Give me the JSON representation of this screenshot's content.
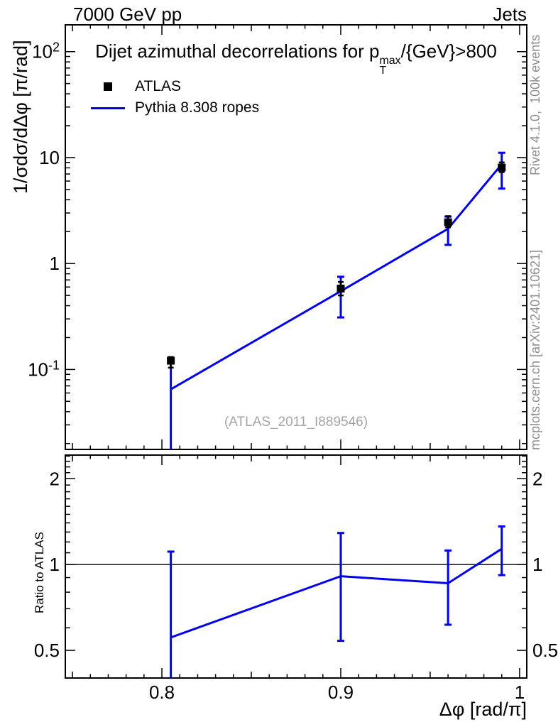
{
  "header": {
    "left": "7000 GeV pp",
    "right": "Jets"
  },
  "title": {
    "pre": "Dijet azimuthal decorrelations for p",
    "sup": "max",
    "sub": "T",
    "post": "/{GeV}>800"
  },
  "legend": {
    "items": [
      {
        "label": "ATLAS",
        "marker": "black-square",
        "color": "#000000"
      },
      {
        "label": "Pythia 8.308 ropes",
        "marker": "blue-line",
        "color": "#0000ee"
      }
    ]
  },
  "axes": {
    "y_label_main": "1/σdσ/dΔφ [π/rad]",
    "y_label_ratio": "Ratio to ATLAS",
    "x_label": "Δφ [rad/π]"
  },
  "side_texts": {
    "rivet": "Rivet 4.1.0,  100k events",
    "mcplots": "mcplots.cern.ch [arXiv:2401.10621]"
  },
  "watermark": "(ATLAS_2011_I889546)",
  "colors": {
    "mc_line": "#0000ee",
    "data_marker": "#000000",
    "frame": "#000000",
    "side_text": "#8f8f8f",
    "watermark": "#a6a6a6"
  },
  "chart_data": {
    "type": "line",
    "title": "Dijet azimuthal decorrelations for pT^max/{GeV}>800",
    "x_axis": {
      "label": "Δφ [rad/π]",
      "range": [
        0.746,
        1.004
      ],
      "major_ticks": [
        0.8,
        0.9,
        1.0
      ],
      "major_tick_labels": [
        "0.8",
        "0.9",
        "1"
      ],
      "medium_step": 0.05,
      "minor_step": 0.01
    },
    "main_panel": {
      "y_scale": "log",
      "y_range": [
        0.0176,
        179
      ],
      "y_label": "1/σdσ/dΔφ [π/rad]",
      "y_major_ticks": [
        {
          "v": 100,
          "base": "10",
          "exp": "2"
        },
        {
          "v": 10,
          "base": "10",
          "exp": ""
        },
        {
          "v": 1,
          "base": "1",
          "exp": ""
        },
        {
          "v": 0.1,
          "base": "10",
          "exp": "-1"
        }
      ],
      "series": [
        {
          "name": "ATLAS",
          "type": "points",
          "color": "#000000",
          "marker": "square",
          "x": [
            0.805,
            0.9,
            0.96,
            0.99
          ],
          "y": [
            0.121,
            0.58,
            2.45,
            8.05
          ],
          "y_err_low": [
            0.104,
            0.5,
            2.2,
            7.3
          ],
          "y_err_high": [
            0.131,
            0.67,
            2.8,
            9.0
          ]
        },
        {
          "name": "Pythia 8.308 ropes",
          "type": "line",
          "color": "#0000ee",
          "x": [
            0.805,
            0.9,
            0.96,
            0.99
          ],
          "y": [
            0.065,
            0.548,
            2.13,
            8.66
          ],
          "y_err_low": [
            0.017,
            0.31,
            1.5,
            5.1
          ],
          "y_err_high": [
            0.126,
            0.75,
            2.77,
            11.1
          ]
        }
      ]
    },
    "ratio_panel": {
      "y_scale": "log",
      "y_range": [
        0.4,
        2.42
      ],
      "y_label": "Ratio to ATLAS",
      "reference_line": 1,
      "y_major_ticks": [
        {
          "v": 2,
          "label": "2"
        },
        {
          "v": 1,
          "label": "1"
        },
        {
          "v": 0.5,
          "label": "0.5"
        }
      ],
      "series": [
        {
          "name": "Pythia 8.308 ropes / ATLAS",
          "type": "line",
          "color": "#0000ee",
          "x": [
            0.805,
            0.9,
            0.96,
            0.99
          ],
          "y": [
            0.555,
            0.91,
            0.86,
            1.135
          ],
          "y_err_low": [
            0.33,
            0.54,
            0.615,
            0.918
          ],
          "y_err_high": [
            1.11,
            1.29,
            1.12,
            1.36
          ]
        }
      ]
    }
  }
}
